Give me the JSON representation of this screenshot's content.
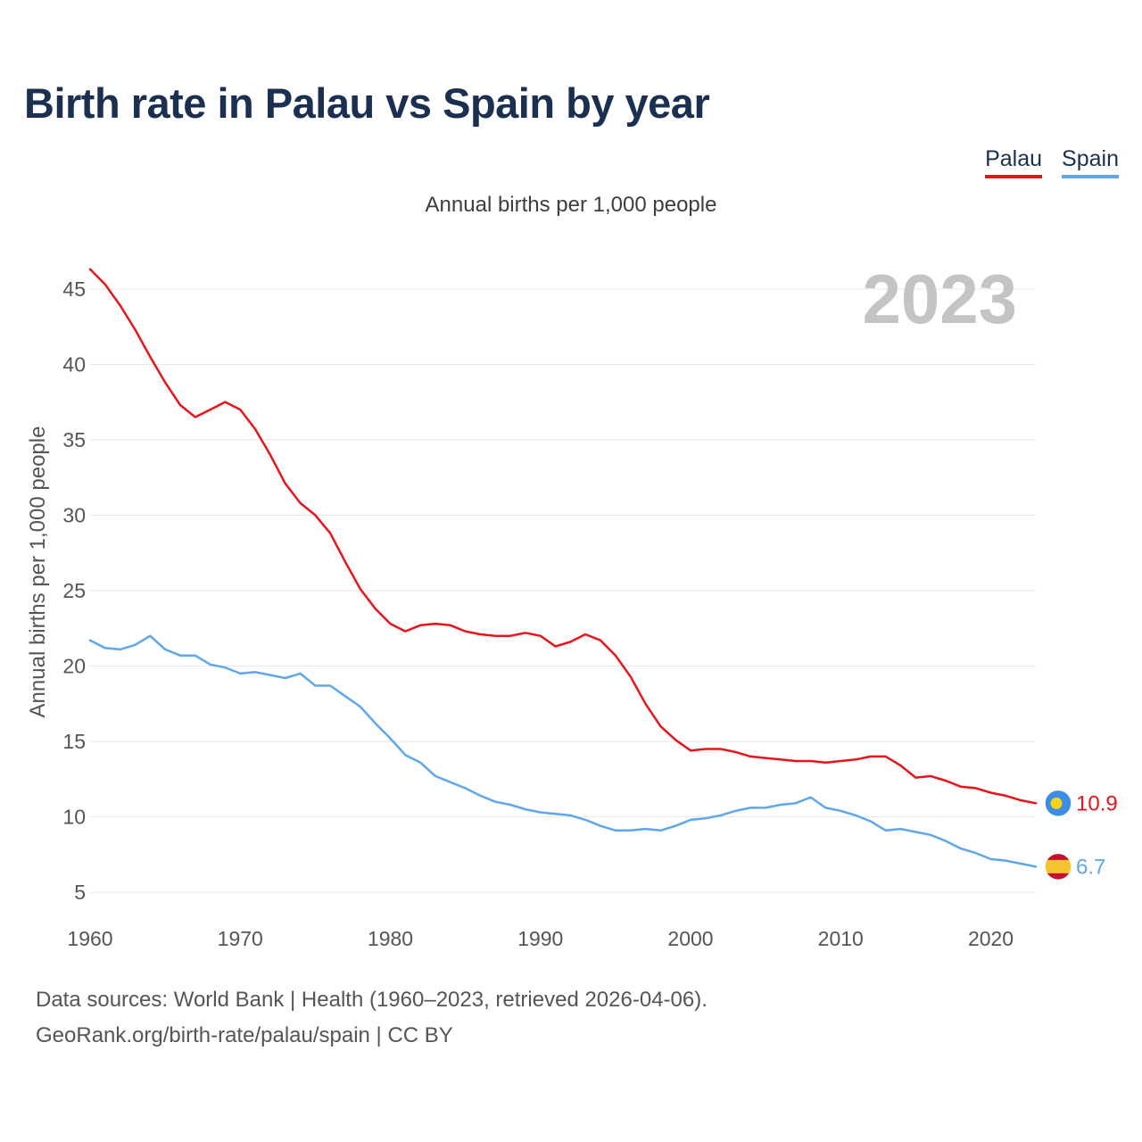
{
  "title": "Birth rate in Palau vs Spain by year",
  "subtitle": "Annual births per 1,000 people",
  "legend": [
    {
      "label": "Palau",
      "color": "#e8141a"
    },
    {
      "label": "Spain",
      "color": "#5ea7ec"
    }
  ],
  "sources": {
    "line1": "Data sources: World Bank | Health (1960–2023, retrieved 2026-04-06).",
    "line2": "GeoRank.org/birth-rate/palau/spain | CC BY"
  },
  "chart_data": {
    "type": "line",
    "title": "Birth rate in Palau vs Spain by year",
    "ylabel": "Annual births per 1,000 people",
    "xlabel": "",
    "year_label": "2023",
    "xlim": [
      1960,
      2023
    ],
    "ylim": [
      4,
      47
    ],
    "x_ticks": [
      1960,
      1970,
      1980,
      1990,
      2000,
      2010,
      2020
    ],
    "y_ticks": [
      5,
      10,
      15,
      20,
      25,
      30,
      35,
      40,
      45
    ],
    "grid": true,
    "x": [
      1960,
      1961,
      1962,
      1963,
      1964,
      1965,
      1966,
      1967,
      1968,
      1969,
      1970,
      1971,
      1972,
      1973,
      1974,
      1975,
      1976,
      1977,
      1978,
      1979,
      1980,
      1981,
      1982,
      1983,
      1984,
      1985,
      1986,
      1987,
      1988,
      1989,
      1990,
      1991,
      1992,
      1993,
      1994,
      1995,
      1996,
      1997,
      1998,
      1999,
      2000,
      2001,
      2002,
      2003,
      2004,
      2005,
      2006,
      2007,
      2008,
      2009,
      2010,
      2011,
      2012,
      2013,
      2014,
      2015,
      2016,
      2017,
      2018,
      2019,
      2020,
      2021,
      2022,
      2023
    ],
    "series": [
      {
        "name": "Palau",
        "color": "#e8141a",
        "end_label": "10.9",
        "values": [
          46.3,
          45.3,
          43.9,
          42.3,
          40.5,
          38.8,
          37.3,
          36.5,
          37.0,
          37.5,
          37.0,
          35.7,
          34.0,
          32.1,
          30.8,
          30.0,
          28.8,
          26.9,
          25.1,
          23.8,
          22.8,
          22.3,
          22.7,
          22.8,
          22.7,
          22.3,
          22.1,
          22.0,
          22.0,
          22.2,
          22.0,
          21.3,
          21.6,
          22.1,
          21.7,
          20.7,
          19.3,
          17.5,
          16.0,
          15.1,
          14.4,
          14.5,
          14.5,
          14.3,
          14.0,
          13.9,
          13.8,
          13.7,
          13.7,
          13.6,
          13.7,
          13.8,
          14.0,
          14.0,
          13.4,
          12.6,
          12.7,
          12.4,
          12.0,
          11.9,
          11.6,
          11.4,
          11.1,
          10.9
        ]
      },
      {
        "name": "Spain",
        "color": "#5ea7ec",
        "end_label": "6.7",
        "values": [
          21.7,
          21.2,
          21.1,
          21.4,
          22.0,
          21.1,
          20.7,
          20.7,
          20.1,
          19.9,
          19.5,
          19.6,
          19.4,
          19.2,
          19.5,
          18.7,
          18.7,
          18.0,
          17.3,
          16.2,
          15.2,
          14.1,
          13.6,
          12.7,
          12.3,
          11.9,
          11.4,
          11.0,
          10.8,
          10.5,
          10.3,
          10.2,
          10.1,
          9.8,
          9.4,
          9.1,
          9.1,
          9.2,
          9.1,
          9.4,
          9.8,
          9.9,
          10.1,
          10.4,
          10.6,
          10.6,
          10.8,
          10.9,
          11.3,
          10.6,
          10.4,
          10.1,
          9.7,
          9.1,
          9.2,
          9.0,
          8.8,
          8.4,
          7.9,
          7.6,
          7.2,
          7.1,
          6.9,
          6.7
        ]
      }
    ]
  }
}
